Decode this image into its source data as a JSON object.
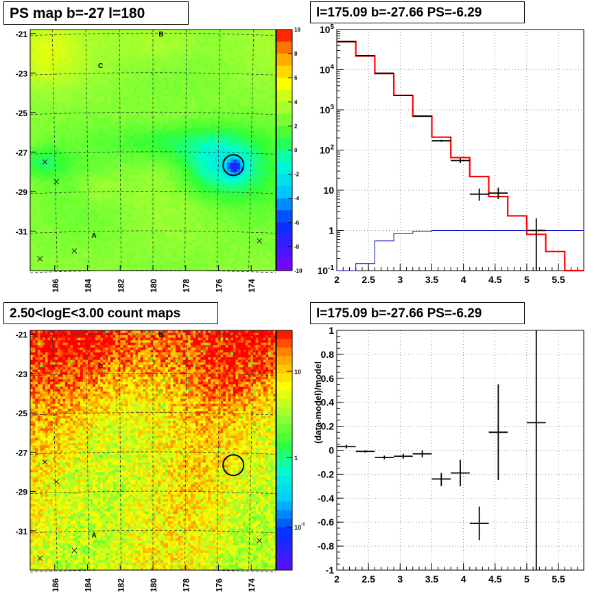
{
  "chart_data": [
    {
      "type": "heatmap",
      "title": "PS map b=-27 l=180",
      "x_ticks": [
        "186",
        "184",
        "182",
        "180",
        "178",
        "176",
        "174"
      ],
      "y_ticks": [
        "-21",
        "-23",
        "-25",
        "-27",
        "-29",
        "-31"
      ],
      "colorbar": {
        "min": -10,
        "max": 10,
        "ticks": [
          "10",
          "8",
          "6",
          "4",
          "2",
          "0",
          "-2",
          "-4",
          "-6",
          "-8",
          "-10"
        ]
      },
      "markers": [
        {
          "type": "letter",
          "label": "B",
          "lon": 179.5,
          "lat": -21.0
        },
        {
          "type": "letter",
          "label": "C",
          "lon": 183.2,
          "lat": -22.6
        },
        {
          "type": "letter",
          "label": "A",
          "lon": 183.6,
          "lat": -31.2
        },
        {
          "type": "cross",
          "lon": 186.6,
          "lat": -27.5
        },
        {
          "type": "cross",
          "lon": 185.9,
          "lat": -28.5
        },
        {
          "type": "cross",
          "lon": 186.9,
          "lat": -32.4
        },
        {
          "type": "cross",
          "lon": 184.8,
          "lat": -32.0
        },
        {
          "type": "cross",
          "lon": 173.5,
          "lat": -31.5
        },
        {
          "type": "circle",
          "lon": 175.09,
          "lat": -27.66
        }
      ]
    },
    {
      "type": "line",
      "title": "l=175.09 b=-27.66 PS=-6.29",
      "yscale": "log",
      "xlim": [
        2,
        5.9
      ],
      "ylim": [
        0.1,
        100000
      ],
      "x_ticks": [
        "2",
        "2.5",
        "3",
        "3.5",
        "4",
        "4.5",
        "5",
        "5.5"
      ],
      "y_ticks": [
        "10^-1",
        "1",
        "10",
        "10^2",
        "10^3",
        "10^4",
        "10^5"
      ],
      "series": [
        {
          "style": "model",
          "color": "#ff0000",
          "edges": [
            2.0,
            2.3,
            2.6,
            2.9,
            3.2,
            3.5,
            3.8,
            4.1,
            4.4,
            4.7,
            5.0,
            5.3,
            5.6,
            5.9
          ],
          "values": [
            50000,
            22000,
            8000,
            2300,
            700,
            210,
            65,
            22,
            7,
            2.3,
            0.8,
            0.3,
            0.1
          ]
        },
        {
          "style": "source",
          "color": "#0000cc",
          "edges": [
            2.0,
            2.3,
            2.6,
            2.9,
            3.2,
            3.5,
            3.8,
            4.1,
            4.4,
            4.7,
            5.0,
            5.3,
            5.6,
            5.9
          ],
          "values": [
            0.1,
            0.15,
            0.55,
            0.85,
            0.95,
            1.0,
            1.0,
            1.0,
            1.0,
            1.0,
            1.0,
            1.0,
            1.0
          ]
        },
        {
          "style": "data",
          "color": "#000000",
          "points": [
            {
              "x": 2.15,
              "xerr": 0.15,
              "y": 50000,
              "ylo": 49500,
              "yhi": 50500
            },
            {
              "x": 2.45,
              "xerr": 0.15,
              "y": 22500,
              "ylo": 22200,
              "yhi": 22800
            },
            {
              "x": 2.75,
              "xerr": 0.15,
              "y": 8200,
              "ylo": 8000,
              "yhi": 8400
            },
            {
              "x": 3.05,
              "xerr": 0.15,
              "y": 2300,
              "ylo": 2250,
              "yhi": 2350
            },
            {
              "x": 3.35,
              "xerr": 0.15,
              "y": 700,
              "ylo": 680,
              "yhi": 720
            },
            {
              "x": 3.65,
              "xerr": 0.15,
              "y": 170,
              "ylo": 160,
              "yhi": 180
            },
            {
              "x": 3.95,
              "xerr": 0.15,
              "y": 55,
              "ylo": 48,
              "yhi": 62
            },
            {
              "x": 4.25,
              "xerr": 0.15,
              "y": 8,
              "ylo": 5.5,
              "yhi": 11
            },
            {
              "x": 4.55,
              "xerr": 0.15,
              "y": 8.5,
              "ylo": 6,
              "yhi": 11.5
            },
            {
              "x": 5.15,
              "xerr": 0.15,
              "y": 1,
              "ylo": 0.1,
              "yhi": 2
            }
          ]
        }
      ]
    },
    {
      "type": "heatmap",
      "title": "2.50<logE<3.00 count maps",
      "x_ticks": [
        "186",
        "184",
        "182",
        "180",
        "178",
        "176",
        "174"
      ],
      "y_ticks": [
        "-21",
        "-23",
        "-25",
        "-27",
        "-29",
        "-31"
      ],
      "colorbar": {
        "scale": "log",
        "ticks": [
          "10",
          "1",
          "10^-1"
        ]
      },
      "markers": [
        {
          "type": "letter",
          "label": "B",
          "lon": 179.5,
          "lat": -21.0
        },
        {
          "type": "letter",
          "label": "C",
          "lon": 183.2,
          "lat": -22.6
        },
        {
          "type": "letter",
          "label": "A",
          "lon": 183.6,
          "lat": -31.2
        },
        {
          "type": "cross",
          "lon": 186.6,
          "lat": -27.5
        },
        {
          "type": "cross",
          "lon": 185.9,
          "lat": -28.5
        },
        {
          "type": "cross",
          "lon": 186.9,
          "lat": -32.4
        },
        {
          "type": "cross",
          "lon": 184.8,
          "lat": -32.0
        },
        {
          "type": "cross",
          "lon": 173.5,
          "lat": -31.5
        },
        {
          "type": "circle",
          "lon": 175.09,
          "lat": -27.66
        }
      ]
    },
    {
      "type": "scatter",
      "title": "l=175.09 b=-27.66 PS=-6.29",
      "ylabel": "(data-model)/model",
      "xlim": [
        2,
        5.9
      ],
      "ylim": [
        -1,
        1
      ],
      "x_ticks": [
        "2",
        "2.5",
        "3",
        "3.5",
        "4",
        "4.5",
        "5",
        "5.5"
      ],
      "y_ticks": [
        "1",
        "0.8",
        "0.6",
        "0.4",
        "0.2",
        "0",
        "-0.2",
        "-0.4",
        "-0.6",
        "-0.8",
        "-1"
      ],
      "points": [
        {
          "x": 2.15,
          "xerr": 0.15,
          "y": 0.03,
          "ylo": 0.015,
          "yhi": 0.045
        },
        {
          "x": 2.45,
          "xerr": 0.15,
          "y": -0.01,
          "ylo": -0.02,
          "yhi": 0.0
        },
        {
          "x": 2.75,
          "xerr": 0.15,
          "y": -0.06,
          "ylo": -0.075,
          "yhi": -0.045
        },
        {
          "x": 3.05,
          "xerr": 0.15,
          "y": -0.05,
          "ylo": -0.07,
          "yhi": -0.03
        },
        {
          "x": 3.35,
          "xerr": 0.15,
          "y": -0.03,
          "ylo": -0.06,
          "yhi": 0.0
        },
        {
          "x": 3.65,
          "xerr": 0.15,
          "y": -0.24,
          "ylo": -0.3,
          "yhi": -0.19
        },
        {
          "x": 3.95,
          "xerr": 0.15,
          "y": -0.19,
          "ylo": -0.3,
          "yhi": -0.08
        },
        {
          "x": 4.25,
          "xerr": 0.15,
          "y": -0.61,
          "ylo": -0.75,
          "yhi": -0.47
        },
        {
          "x": 4.55,
          "xerr": 0.15,
          "y": 0.15,
          "ylo": -0.25,
          "yhi": 0.55
        },
        {
          "x": 5.15,
          "xerr": 0.15,
          "y": 0.23,
          "ylo": -1.0,
          "yhi": 1.0
        }
      ]
    }
  ]
}
